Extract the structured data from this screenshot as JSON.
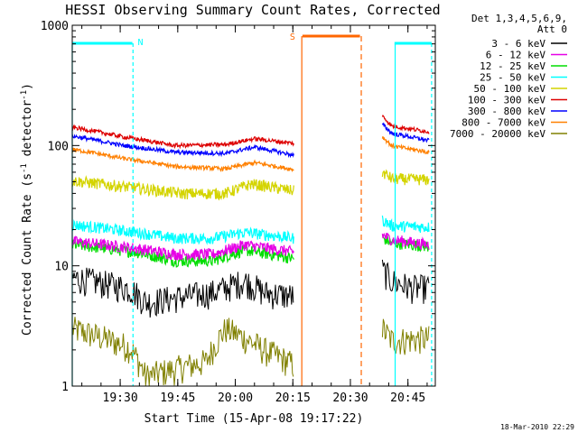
{
  "chart_data": {
    "type": "line",
    "title": "HESSI Observing Summary Count Rates, Corrected",
    "xlabel": "Start Time (15-Apr-08 19:17:22)",
    "ylabel_main": "Corrected Count Rate (s",
    "ylabel_sup1": "-1",
    "ylabel_mid": " detector",
    "ylabel_sup2": "-1",
    "ylabel_end": ")",
    "y_scale": "log",
    "ylim": [
      1,
      1000
    ],
    "xlim": [
      "19:17:22",
      "20:52:00"
    ],
    "x_tick_labels": [
      "19:30",
      "19:45",
      "20:00",
      "20:15",
      "20:30",
      "20:45"
    ],
    "x_tick_values_min": [
      750,
      1650,
      2550,
      3450,
      4350,
      5250
    ],
    "x_range_min": [
      0,
      5678
    ],
    "y_tick_labels": [
      "1",
      "10",
      "100",
      "1000"
    ],
    "y_tick_values": [
      1,
      10,
      100,
      1000
    ],
    "legend": {
      "header_line1": "Det 1,3,4,5,6,9,",
      "header_line2": "Att 0",
      "placement": "right-outside"
    },
    "series": [
      {
        "name": "3 - 6 keV",
        "color": "#000000",
        "segA": [
          [
            0,
            8
          ],
          [
            900,
            6.5
          ],
          [
            1150,
            5
          ],
          [
            2200,
            6
          ],
          [
            2700,
            7.5
          ],
          [
            3000,
            6
          ],
          [
            3470,
            5.6
          ]
        ],
        "segB": [
          [
            4850,
            9.2
          ],
          [
            5000,
            7.5
          ],
          [
            5300,
            6.6
          ],
          [
            5580,
            6.6
          ]
        ]
      },
      {
        "name": "6 - 12 keV",
        "color": "#e600e6",
        "segA": [
          [
            0,
            16
          ],
          [
            1000,
            14
          ],
          [
            1600,
            12.5
          ],
          [
            2200,
            12.5
          ],
          [
            2700,
            15
          ],
          [
            3470,
            13
          ]
        ],
        "segB": [
          [
            4850,
            18
          ],
          [
            5000,
            16.5
          ],
          [
            5580,
            15
          ]
        ]
      },
      {
        "name": "12 - 25 keV",
        "color": "#00dd00",
        "segA": [
          [
            0,
            15
          ],
          [
            1000,
            13
          ],
          [
            1600,
            11
          ],
          [
            2200,
            11
          ],
          [
            2700,
            13.5
          ],
          [
            3470,
            11.5
          ]
        ],
        "segB": [
          [
            4850,
            17
          ],
          [
            5000,
            15.5
          ],
          [
            5580,
            14.5
          ]
        ]
      },
      {
        "name": "25 - 50 keV",
        "color": "#00ffff",
        "segA": [
          [
            0,
            22
          ],
          [
            1000,
            19
          ],
          [
            1600,
            17
          ],
          [
            2200,
            17
          ],
          [
            2700,
            19
          ],
          [
            3470,
            17
          ]
        ],
        "segB": [
          [
            4850,
            24
          ],
          [
            5000,
            21.5
          ],
          [
            5580,
            21
          ]
        ]
      },
      {
        "name": "50 - 100 keV",
        "color": "#d4d400",
        "segA": [
          [
            0,
            51
          ],
          [
            900,
            45
          ],
          [
            1700,
            40
          ],
          [
            2400,
            40
          ],
          [
            2800,
            48
          ],
          [
            3470,
            42
          ]
        ],
        "segB": [
          [
            4850,
            60
          ],
          [
            5000,
            53
          ],
          [
            5580,
            52
          ]
        ]
      },
      {
        "name": "100 - 300 keV",
        "color": "#dd0000",
        "segA": [
          [
            0,
            142
          ],
          [
            800,
            118
          ],
          [
            1600,
            100
          ],
          [
            2400,
            102
          ],
          [
            2850,
            114
          ],
          [
            3470,
            104
          ]
        ],
        "segB": [
          [
            4850,
            175
          ],
          [
            5000,
            145
          ],
          [
            5580,
            130
          ]
        ]
      },
      {
        "name": "300 - 800 keV",
        "color": "#0000ff",
        "segA": [
          [
            0,
            120
          ],
          [
            800,
            100
          ],
          [
            1600,
            88
          ],
          [
            2400,
            86
          ],
          [
            2850,
            97
          ],
          [
            3470,
            83
          ]
        ],
        "segB": [
          [
            4850,
            150
          ],
          [
            5000,
            126
          ],
          [
            5580,
            110
          ]
        ]
      },
      {
        "name": "800 - 7000 keV",
        "color": "#ff8000",
        "segA": [
          [
            0,
            93
          ],
          [
            800,
            78
          ],
          [
            1600,
            67
          ],
          [
            2400,
            64
          ],
          [
            2850,
            72
          ],
          [
            3470,
            63
          ]
        ],
        "segB": [
          [
            4850,
            118
          ],
          [
            5000,
            99
          ],
          [
            5580,
            88
          ]
        ]
      },
      {
        "name": "7000 - 20000 keV",
        "color": "#808000",
        "segA": [
          [
            0,
            3
          ],
          [
            900,
            2.1
          ],
          [
            1150,
            1.2
          ],
          [
            2100,
            1.6
          ],
          [
            2400,
            3
          ],
          [
            3000,
            2
          ],
          [
            3470,
            1.5
          ]
        ],
        "segB": [
          [
            4850,
            3
          ],
          [
            5000,
            2.4
          ],
          [
            5580,
            2.5
          ]
        ]
      }
    ],
    "annotations": {
      "night_marker": "N",
      "saa_marker": "S",
      "night_color": "#00ffff",
      "saa_color": "#ff6600",
      "night_bars_min": [
        [
          0,
          940
        ],
        [
          5040,
          5620
        ]
      ],
      "night_lines_min": [
        0,
        950,
        5050,
        5620
      ],
      "saa_bar_min": [
        3600,
        4500
      ],
      "saa_lines_min": [
        3590,
        4520
      ],
      "data_gap_min": [
        3480,
        4840
      ]
    },
    "footer_timestamp": "18-Mar-2010 22:29"
  }
}
